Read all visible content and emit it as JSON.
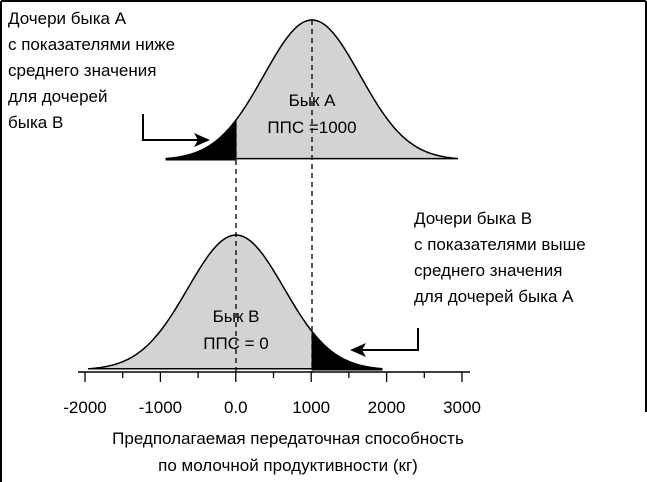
{
  "label_a_daughters": [
    "Дочери быка А",
    "с показателями ниже",
    "среднего значения",
    "для дочерей",
    "быка В"
  ],
  "label_b_daughters": [
    "Дочери быка В",
    "с показателями выше",
    "среднего значения",
    "для дочерей быка А"
  ],
  "bull_a": [
    "Бык А",
    "ППС =1000"
  ],
  "bull_b": [
    "Бык В",
    "ППС = 0"
  ],
  "axis_ticks": [
    "-2000",
    "-1000",
    "0.0",
    "1000",
    "2000",
    "3000"
  ],
  "axis_title": [
    "Предполагаемая передаточная способность",
    "по молочной продуктивности (кг)"
  ]
}
